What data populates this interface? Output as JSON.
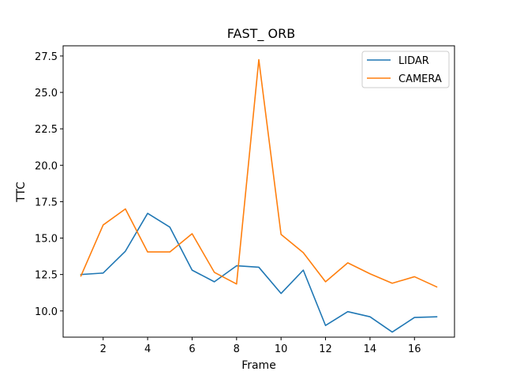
{
  "chart_data": {
    "type": "line",
    "title": "FAST_ ORB",
    "xlabel": "Frame",
    "ylabel": "TTC",
    "x": [
      1,
      2,
      3,
      4,
      5,
      6,
      7,
      8,
      9,
      10,
      11,
      12,
      13,
      14,
      15,
      16,
      17
    ],
    "series": [
      {
        "name": "LIDAR",
        "color": "#1f77b4",
        "values": [
          12.5,
          12.6,
          14.1,
          16.7,
          15.75,
          12.8,
          12.0,
          13.1,
          13.0,
          11.2,
          12.8,
          9.0,
          9.95,
          9.6,
          8.55,
          9.55,
          9.6
        ]
      },
      {
        "name": "CAMERA",
        "color": "#ff7f0e",
        "values": [
          12.4,
          15.9,
          17.0,
          14.05,
          14.05,
          15.3,
          12.65,
          11.85,
          27.25,
          15.25,
          14.0,
          12.0,
          13.3,
          12.55,
          11.9,
          12.35,
          11.65
        ]
      }
    ],
    "xlim": [
      0.2,
      17.8
    ],
    "ylim": [
      8.2,
      28.2
    ],
    "xticks": [
      2,
      4,
      6,
      8,
      10,
      12,
      14,
      16
    ],
    "yticks": [
      10.0,
      12.5,
      15.0,
      17.5,
      20.0,
      22.5,
      25.0,
      27.5
    ],
    "xtick_labels": [
      "2",
      "4",
      "6",
      "8",
      "10",
      "12",
      "14",
      "16"
    ],
    "ytick_labels": [
      "10.0",
      "12.5",
      "15.0",
      "17.5",
      "20.0",
      "22.5",
      "25.0",
      "27.5"
    ],
    "grid": false,
    "legend_position": "top-right"
  }
}
